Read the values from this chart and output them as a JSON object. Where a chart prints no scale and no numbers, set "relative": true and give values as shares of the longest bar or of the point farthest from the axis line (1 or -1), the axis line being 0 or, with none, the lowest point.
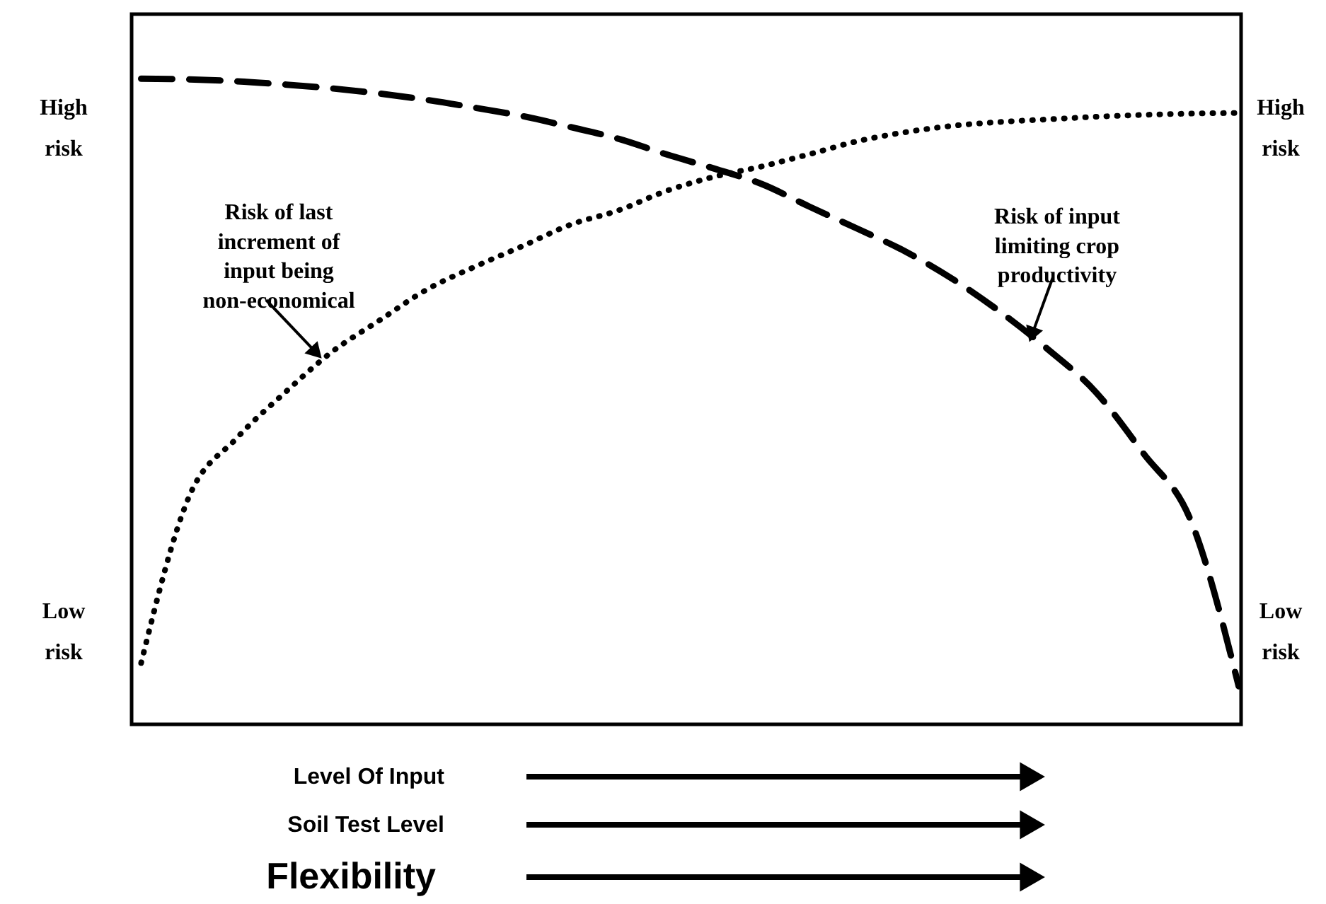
{
  "chart_data": {
    "type": "line",
    "relative": true,
    "categories": [
      null,
      null,
      null,
      null,
      null,
      null,
      null,
      null,
      null,
      null,
      null,
      null,
      null,
      null,
      null,
      null,
      null,
      null,
      null,
      null,
      null,
      null,
      null,
      null
    ],
    "series": [
      {
        "color": "#000000",
        "line_style": "dashed",
        "values": [
          1.0,
          0.999,
          0.996,
          0.991,
          0.985,
          0.977,
          0.967,
          0.955,
          0.942,
          0.925,
          0.907,
          0.883,
          0.861,
          0.837,
          0.802,
          0.768,
          0.733,
          0.69,
          0.639,
          0.581,
          0.515,
          0.42,
          0.315,
          0.059
        ]
      },
      {
        "color": "#000000",
        "line_style": "dotted",
        "values": [
          0.095,
          0.352,
          0.443,
          0.513,
          0.577,
          0.626,
          0.674,
          0.709,
          0.741,
          0.774,
          0.796,
          0.826,
          0.848,
          0.864,
          0.883,
          0.903,
          0.917,
          0.927,
          0.933,
          0.937,
          0.941,
          0.944,
          0.946,
          0.947
        ]
      }
    ],
    "annotations": [
      "High\nrisk",
      "Low\nrisk",
      "High\nrisk",
      "Low\nrisk",
      "Risk of last\nincrement of\ninput being\nnon-economical",
      "Risk of input\nlimiting crop\nproductivity",
      "Level Of Input",
      "Soil Test Level",
      "Flexibility"
    ]
  }
}
